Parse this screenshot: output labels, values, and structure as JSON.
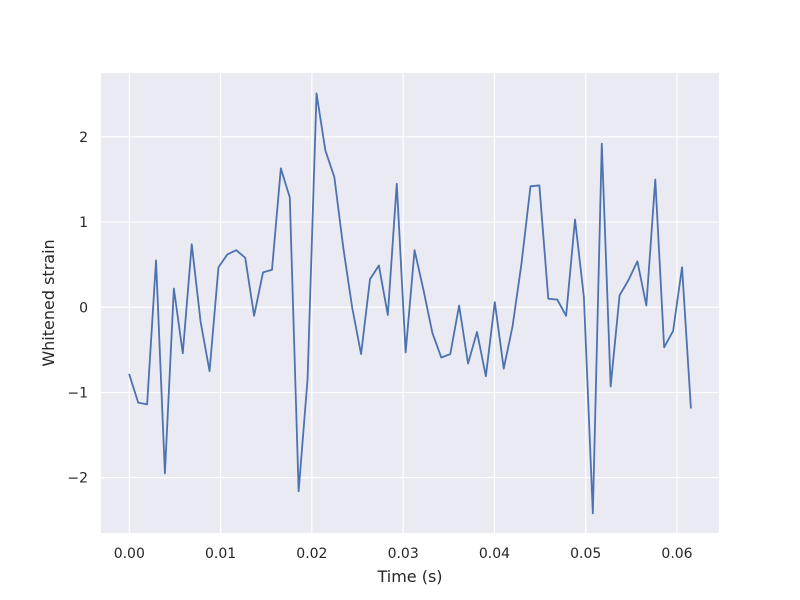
{
  "chart_data": {
    "type": "line",
    "title": "",
    "xlabel": "Time (s)",
    "ylabel": "Whitened strain",
    "xlim": [
      -0.0031,
      0.0646
    ],
    "ylim": [
      -2.65,
      2.75
    ],
    "grid": true,
    "background_color": "#eaeaf2",
    "grid_color": "#ffffff",
    "x_ticks": [
      0.0,
      0.01,
      0.02,
      0.03,
      0.04,
      0.05,
      0.06
    ],
    "x_tick_labels": [
      "0.00",
      "0.01",
      "0.02",
      "0.03",
      "0.04",
      "0.05",
      "0.06"
    ],
    "y_ticks": [
      -2,
      -1,
      0,
      1,
      2
    ],
    "y_tick_labels": [
      "−2",
      "−1",
      "0",
      "1",
      "2"
    ],
    "series": [
      {
        "color": "#4c72b0",
        "x": [
          0.0,
          0.00098,
          0.00195,
          0.00293,
          0.0039,
          0.00488,
          0.00586,
          0.00684,
          0.00781,
          0.00879,
          0.00977,
          0.01074,
          0.01172,
          0.0127,
          0.01367,
          0.01465,
          0.01563,
          0.0166,
          0.01758,
          0.01855,
          0.01953,
          0.02051,
          0.02148,
          0.02246,
          0.02344,
          0.02441,
          0.02539,
          0.02637,
          0.02734,
          0.02832,
          0.0293,
          0.03027,
          0.03125,
          0.03223,
          0.0332,
          0.03418,
          0.03516,
          0.03613,
          0.03711,
          0.03809,
          0.03906,
          0.04004,
          0.04102,
          0.04199,
          0.04297,
          0.04395,
          0.04492,
          0.0459,
          0.04688,
          0.04785,
          0.04883,
          0.0498,
          0.05078,
          0.05176,
          0.05273,
          0.05371,
          0.05469,
          0.05566,
          0.05664,
          0.05762,
          0.05859,
          0.05957,
          0.06055,
          0.06152
        ],
        "y": [
          -0.79,
          -1.12,
          -1.14,
          0.55,
          -1.95,
          0.22,
          -0.54,
          0.74,
          -0.17,
          -0.75,
          0.47,
          0.62,
          0.67,
          0.58,
          -0.1,
          0.41,
          0.44,
          1.63,
          1.29,
          -2.16,
          -0.84,
          2.51,
          1.84,
          1.53,
          0.7,
          0.0,
          -0.55,
          0.33,
          0.49,
          -0.09,
          1.45,
          -0.53,
          0.67,
          0.2,
          -0.3,
          -0.59,
          -0.55,
          0.02,
          -0.66,
          -0.29,
          -0.81,
          0.06,
          -0.72,
          -0.22,
          0.52,
          1.42,
          1.43,
          0.1,
          0.09,
          -0.1,
          1.03,
          0.12,
          -2.42,
          1.92,
          -0.93,
          0.14,
          0.32,
          0.54,
          0.02,
          1.5,
          -0.47,
          -0.28,
          0.47,
          -1.18
        ]
      }
    ]
  }
}
